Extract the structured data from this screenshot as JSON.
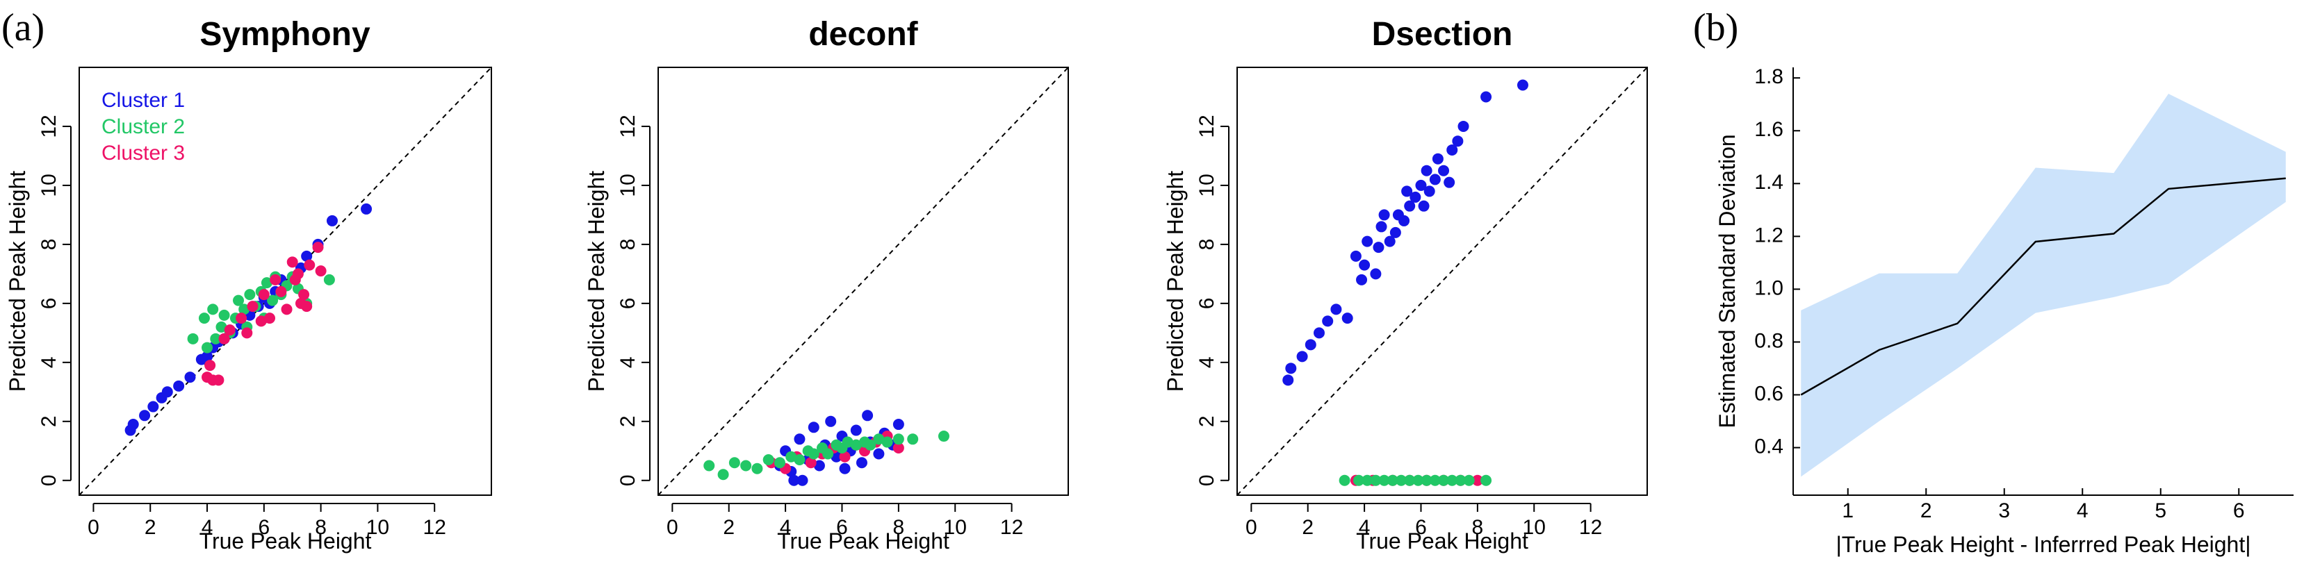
{
  "panels": {
    "a_label": "(a)",
    "b_label": "(b)"
  },
  "chart_data": [
    {
      "type": "scatter",
      "title": "Symphony",
      "xlabel": "True Peak Height",
      "ylabel": "Predicted Peak Height",
      "xlim": [
        -0.5,
        14
      ],
      "ylim": [
        -0.5,
        14
      ],
      "xticks": [
        0,
        2,
        4,
        6,
        8,
        10,
        12
      ],
      "yticks": [
        0,
        2,
        4,
        6,
        8,
        10,
        12
      ],
      "diagonal": true,
      "legend": {
        "position": "top-left",
        "entries": [
          {
            "label": "Cluster 1",
            "color": "#1515e6"
          },
          {
            "label": "Cluster 2",
            "color": "#22c766"
          },
          {
            "label": "Cluster 3",
            "color": "#ee1166"
          }
        ]
      },
      "series": [
        {
          "name": "Cluster 1",
          "color": "#1515e6",
          "points": [
            [
              1.3,
              1.7
            ],
            [
              1.4,
              1.9
            ],
            [
              1.8,
              2.2
            ],
            [
              2.1,
              2.5
            ],
            [
              2.4,
              2.8
            ],
            [
              2.6,
              3.0
            ],
            [
              3.0,
              3.2
            ],
            [
              3.4,
              3.5
            ],
            [
              3.8,
              4.1
            ],
            [
              4.0,
              4.2
            ],
            [
              4.2,
              4.5
            ],
            [
              4.4,
              4.7
            ],
            [
              4.6,
              4.8
            ],
            [
              4.9,
              5.0
            ],
            [
              5.2,
              5.3
            ],
            [
              5.5,
              5.6
            ],
            [
              5.8,
              5.9
            ],
            [
              6.0,
              6.2
            ],
            [
              6.2,
              6.0
            ],
            [
              6.4,
              6.4
            ],
            [
              6.6,
              6.8
            ],
            [
              7.0,
              6.9
            ],
            [
              7.3,
              7.2
            ],
            [
              7.5,
              7.6
            ],
            [
              7.9,
              8.0
            ],
            [
              8.4,
              8.8
            ],
            [
              9.6,
              9.2
            ]
          ]
        },
        {
          "name": "Cluster 2",
          "color": "#22c766",
          "points": [
            [
              3.5,
              4.8
            ],
            [
              3.9,
              5.5
            ],
            [
              4.0,
              4.5
            ],
            [
              4.2,
              5.8
            ],
            [
              4.3,
              4.8
            ],
            [
              4.5,
              5.2
            ],
            [
              4.6,
              5.6
            ],
            [
              4.8,
              5.0
            ],
            [
              5.0,
              5.5
            ],
            [
              5.1,
              6.1
            ],
            [
              5.3,
              5.8
            ],
            [
              5.4,
              5.2
            ],
            [
              5.5,
              6.3
            ],
            [
              5.7,
              5.9
            ],
            [
              5.9,
              6.4
            ],
            [
              6.0,
              5.5
            ],
            [
              6.1,
              6.7
            ],
            [
              6.3,
              6.1
            ],
            [
              6.4,
              6.9
            ],
            [
              6.6,
              6.3
            ],
            [
              6.8,
              6.6
            ],
            [
              7.0,
              6.9
            ],
            [
              7.2,
              6.5
            ],
            [
              7.5,
              6.0
            ],
            [
              8.3,
              6.8
            ]
          ]
        },
        {
          "name": "Cluster 3",
          "color": "#ee1166",
          "points": [
            [
              4.0,
              3.5
            ],
            [
              4.1,
              3.9
            ],
            [
              4.2,
              3.4
            ],
            [
              4.4,
              3.4
            ],
            [
              4.6,
              4.8
            ],
            [
              4.8,
              5.1
            ],
            [
              5.2,
              5.5
            ],
            [
              5.4,
              5.0
            ],
            [
              5.6,
              5.9
            ],
            [
              5.9,
              5.4
            ],
            [
              6.0,
              6.3
            ],
            [
              6.2,
              5.5
            ],
            [
              6.4,
              6.8
            ],
            [
              6.6,
              6.4
            ],
            [
              6.8,
              5.8
            ],
            [
              7.0,
              7.4
            ],
            [
              7.1,
              6.8
            ],
            [
              7.2,
              7.0
            ],
            [
              7.3,
              6.0
            ],
            [
              7.4,
              6.3
            ],
            [
              7.5,
              5.9
            ],
            [
              7.6,
              7.3
            ],
            [
              7.9,
              7.9
            ],
            [
              8.0,
              7.1
            ]
          ]
        }
      ]
    },
    {
      "type": "scatter",
      "title": "deconf",
      "xlabel": "True Peak Height",
      "ylabel": "Predicted Peak Height",
      "xlim": [
        -0.5,
        14
      ],
      "ylim": [
        -0.5,
        14
      ],
      "xticks": [
        0,
        2,
        4,
        6,
        8,
        10,
        12
      ],
      "yticks": [
        0,
        2,
        4,
        6,
        8,
        10,
        12
      ],
      "diagonal": true,
      "series": [
        {
          "name": "Cluster 1",
          "color": "#1515e6",
          "points": [
            [
              3.8,
              0.5
            ],
            [
              4.0,
              1.0
            ],
            [
              4.2,
              0.3
            ],
            [
              4.3,
              0.0
            ],
            [
              4.5,
              1.4
            ],
            [
              4.6,
              0.0
            ],
            [
              4.8,
              0.7
            ],
            [
              5.0,
              1.8
            ],
            [
              5.2,
              0.5
            ],
            [
              5.4,
              1.2
            ],
            [
              5.6,
              2.0
            ],
            [
              5.8,
              0.8
            ],
            [
              6.0,
              1.5
            ],
            [
              6.1,
              0.4
            ],
            [
              6.3,
              1.0
            ],
            [
              6.5,
              1.7
            ],
            [
              6.7,
              0.6
            ],
            [
              6.9,
              2.2
            ],
            [
              7.0,
              1.3
            ],
            [
              7.3,
              0.9
            ],
            [
              7.5,
              1.6
            ],
            [
              7.8,
              1.2
            ],
            [
              8.0,
              1.9
            ]
          ]
        },
        {
          "name": "Cluster 3",
          "color": "#ee1166",
          "points": [
            [
              3.5,
              0.6
            ],
            [
              4.0,
              0.4
            ],
            [
              4.4,
              0.8
            ],
            [
              4.9,
              0.6
            ],
            [
              5.3,
              0.9
            ],
            [
              5.7,
              1.1
            ],
            [
              6.1,
              0.8
            ],
            [
              6.5,
              1.2
            ],
            [
              6.8,
              1.0
            ],
            [
              7.2,
              1.3
            ],
            [
              7.6,
              1.5
            ],
            [
              8.0,
              1.1
            ]
          ]
        },
        {
          "name": "Cluster 2",
          "color": "#22c766",
          "points": [
            [
              1.3,
              0.5
            ],
            [
              1.8,
              0.2
            ],
            [
              2.2,
              0.6
            ],
            [
              2.6,
              0.5
            ],
            [
              3.0,
              0.4
            ],
            [
              3.4,
              0.7
            ],
            [
              3.8,
              0.6
            ],
            [
              4.2,
              0.8
            ],
            [
              4.5,
              0.7
            ],
            [
              4.8,
              1.0
            ],
            [
              5.0,
              0.9
            ],
            [
              5.3,
              1.1
            ],
            [
              5.5,
              0.9
            ],
            [
              5.8,
              1.2
            ],
            [
              6.0,
              1.1
            ],
            [
              6.2,
              1.3
            ],
            [
              6.5,
              1.2
            ],
            [
              6.8,
              1.3
            ],
            [
              7.0,
              1.2
            ],
            [
              7.3,
              1.4
            ],
            [
              7.6,
              1.3
            ],
            [
              8.0,
              1.4
            ],
            [
              8.5,
              1.4
            ],
            [
              9.6,
              1.5
            ]
          ]
        }
      ]
    },
    {
      "type": "scatter",
      "title": "Dsection",
      "xlabel": "True Peak Height",
      "ylabel": "Predicted Peak Height",
      "xlim": [
        -0.5,
        14
      ],
      "ylim": [
        -0.5,
        14
      ],
      "xticks": [
        0,
        2,
        4,
        6,
        8,
        10,
        12
      ],
      "yticks": [
        0,
        2,
        4,
        6,
        8,
        10,
        12
      ],
      "diagonal": true,
      "series": [
        {
          "name": "Cluster 1",
          "color": "#1515e6",
          "points": [
            [
              1.3,
              3.4
            ],
            [
              1.4,
              3.8
            ],
            [
              1.8,
              4.2
            ],
            [
              2.1,
              4.6
            ],
            [
              2.4,
              5.0
            ],
            [
              2.7,
              5.4
            ],
            [
              3.0,
              5.8
            ],
            [
              3.4,
              5.5
            ],
            [
              3.7,
              7.6
            ],
            [
              3.9,
              6.8
            ],
            [
              4.0,
              7.3
            ],
            [
              4.1,
              8.1
            ],
            [
              4.4,
              7.0
            ],
            [
              4.5,
              7.9
            ],
            [
              4.6,
              8.6
            ],
            [
              4.7,
              9.0
            ],
            [
              4.9,
              8.1
            ],
            [
              5.1,
              8.4
            ],
            [
              5.2,
              9.0
            ],
            [
              5.4,
              8.8
            ],
            [
              5.5,
              9.8
            ],
            [
              5.6,
              9.3
            ],
            [
              5.8,
              9.6
            ],
            [
              6.0,
              10.0
            ],
            [
              6.1,
              9.3
            ],
            [
              6.2,
              10.5
            ],
            [
              6.3,
              9.8
            ],
            [
              6.5,
              10.2
            ],
            [
              6.6,
              10.9
            ],
            [
              6.8,
              10.5
            ],
            [
              7.0,
              10.1
            ],
            [
              7.1,
              11.2
            ],
            [
              7.3,
              11.5
            ],
            [
              7.5,
              12.0
            ],
            [
              8.3,
              13.0
            ],
            [
              9.6,
              13.4
            ]
          ]
        },
        {
          "name": "Cluster 3",
          "color": "#ee1166",
          "points": [
            [
              3.7,
              0.0
            ],
            [
              4.3,
              0.0
            ],
            [
              5.0,
              0.0
            ],
            [
              5.6,
              0.0
            ],
            [
              6.2,
              0.0
            ],
            [
              6.8,
              0.0
            ],
            [
              7.4,
              0.0
            ],
            [
              8.0,
              0.0
            ]
          ]
        },
        {
          "name": "Cluster 2",
          "color": "#22c766",
          "points": [
            [
              3.3,
              0.0
            ],
            [
              3.8,
              0.0
            ],
            [
              4.1,
              0.0
            ],
            [
              4.4,
              0.0
            ],
            [
              4.7,
              0.0
            ],
            [
              5.0,
              0.0
            ],
            [
              5.3,
              0.0
            ],
            [
              5.6,
              0.0
            ],
            [
              5.9,
              0.0
            ],
            [
              6.2,
              0.0
            ],
            [
              6.5,
              0.0
            ],
            [
              6.8,
              0.0
            ],
            [
              7.1,
              0.0
            ],
            [
              7.4,
              0.0
            ],
            [
              7.7,
              0.0
            ],
            [
              8.3,
              0.0
            ]
          ]
        }
      ]
    },
    {
      "type": "area",
      "title": "",
      "xlabel": "|True Peak Height - Inferrred Peak Height|",
      "ylabel": "Estimated Standard Deviation",
      "xlim": [
        0.3,
        6.7
      ],
      "ylim": [
        0.22,
        1.84
      ],
      "xticks": [
        1,
        2,
        3,
        4,
        5,
        6
      ],
      "yticks": [
        0.4,
        0.6,
        0.8,
        1.0,
        1.2,
        1.4,
        1.6,
        1.8
      ],
      "ytick_labels": [
        "0.4",
        "0.6",
        "0.8",
        "1.0",
        "1.2",
        "1.4",
        "1.6",
        "1.8"
      ],
      "band_color": "#cce3fb",
      "x": [
        0.4,
        1.4,
        2.4,
        3.4,
        4.4,
        5.1,
        6.6
      ],
      "mean": [
        0.6,
        0.77,
        0.87,
        1.18,
        1.21,
        1.38,
        1.42
      ],
      "upper": [
        0.92,
        1.06,
        1.06,
        1.46,
        1.44,
        1.74,
        1.52
      ],
      "lower": [
        0.29,
        0.5,
        0.7,
        0.91,
        0.97,
        1.02,
        1.33
      ]
    }
  ]
}
